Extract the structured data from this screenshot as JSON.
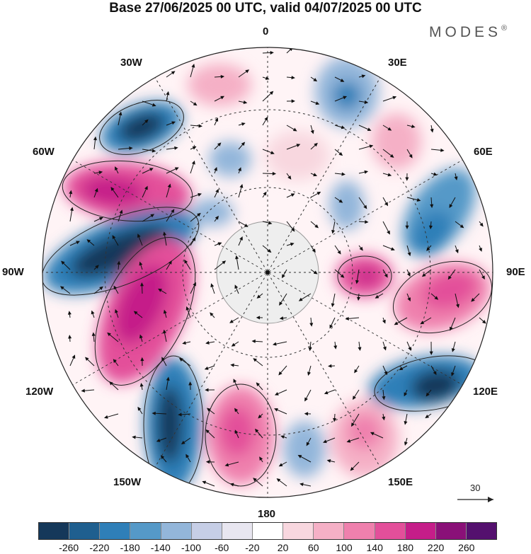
{
  "title": "Base 27/06/2025 00 UTC, valid 04/07/2025 00 UTC",
  "brand": "MODES",
  "brand_mark": "®",
  "longitude_labels": {
    "top": "0",
    "top_right": "30E",
    "right_upper": "60E",
    "right": "90E",
    "right_lower": "120E",
    "bottom_right": "150E",
    "bottom": "180",
    "bottom_left": "150W",
    "left_lower": "120W",
    "left": "90W",
    "left_upper": "60W",
    "top_left": "30W"
  },
  "vector_scale": {
    "label": "30",
    "icon": "arrow-right-icon"
  },
  "colorbar": {
    "colors": [
      "#15385a",
      "#1f5f8f",
      "#2f7fb8",
      "#5599c8",
      "#93b6da",
      "#c6cee6",
      "#e8e6f0",
      "#ffffff",
      "#f8d7df",
      "#f5b0c6",
      "#ef80ad",
      "#e34f9a",
      "#c51d89",
      "#8a1078",
      "#54106e"
    ],
    "tick_labels": [
      "-260",
      "-220",
      "-180",
      "-140",
      "-100",
      "-60",
      "-20",
      "20",
      "60",
      "100",
      "140",
      "180",
      "220",
      "260"
    ]
  },
  "map": {
    "projection": "south-polar-stereographic",
    "pole_fill": "#eeeeee",
    "land_outline": "#999999"
  }
}
